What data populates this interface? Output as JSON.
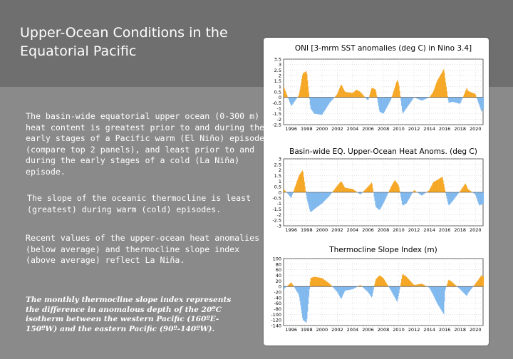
{
  "slide": {
    "title": "Upper-Ocean Conditions in the Equatorial Pacific",
    "para1": "The basin-wide equatorial upper ocean (0-300 m) heat content is greatest prior to and during the early stages of a Pacific warm (El Niño) episode (compare top 2 panels), and least prior to and during the early stages of a cold (La Niña) episode.",
    "para2": "The slope of the oceanic thermocline is least (greatest) during warm (cold) episodes.",
    "para3": "Recent values of the upper-ocean heat anomalies (below average) and thermocline slope index (above average) reflect La Niña.",
    "note": "The monthly thermocline slope index represents the difference in anomalous depth of the 20ºC isotherm between the western Pacific (160ºE-150ºW) and the eastern Pacific (90º-140ºW)."
  },
  "colors": {
    "positive": "#f5a623",
    "negative": "#7fb8ee"
  },
  "chart_data": [
    {
      "type": "area",
      "title": "ONI [3-mrm SST anomalies (deg C) in Nino 3.4]",
      "x": [
        1995,
        1996,
        1997,
        1997.5,
        1998,
        1998.5,
        1999,
        2000,
        2001,
        2002,
        2002.5,
        2003,
        2004,
        2004.5,
        2005,
        2006,
        2006.5,
        2007,
        2007.5,
        2008,
        2009,
        2009.8,
        2010,
        2010.5,
        2011,
        2012,
        2013,
        2014,
        2014.5,
        2015,
        2015.9,
        2016,
        2016.5,
        2017,
        2018,
        2018.9,
        2019,
        2020,
        2020.8,
        2021
      ],
      "y": [
        1.0,
        -0.8,
        0.2,
        2.2,
        2.4,
        -1.0,
        -1.5,
        -1.6,
        -0.5,
        0.3,
        1.2,
        0.5,
        0.4,
        0.7,
        0.5,
        -0.3,
        0.9,
        0.7,
        -1.3,
        -1.5,
        -0.2,
        1.6,
        1.3,
        -1.5,
        -1.0,
        0.0,
        -0.3,
        0.0,
        0.5,
        1.5,
        2.6,
        2.0,
        -0.5,
        -0.4,
        -0.6,
        0.9,
        0.6,
        0.3,
        -1.3,
        -1.1
      ],
      "yticks": [
        3.5,
        3,
        2.5,
        2,
        1.5,
        1,
        0.5,
        0,
        -0.5,
        -1,
        -1.5,
        -2,
        -2.5
      ],
      "ylim": [
        -2.5,
        3.5
      ],
      "xticks": [
        1996,
        1998,
        2000,
        2002,
        2004,
        2006,
        2008,
        2010,
        2012,
        2014,
        2016,
        2018,
        2020
      ]
    },
    {
      "type": "area",
      "title": "Basin-wide EQ. Upper-Ocean Heat Anoms. (deg C)",
      "x": [
        1995,
        1996,
        1997,
        1997.5,
        1998,
        1998.5,
        1999,
        2000,
        2001,
        2002,
        2002.5,
        2003,
        2004,
        2005,
        2006,
        2006.5,
        2007,
        2007.5,
        2008,
        2009,
        2009.5,
        2010,
        2010.5,
        2011,
        2012,
        2013,
        2014,
        2014.5,
        2015,
        2015.7,
        2016,
        2016.5,
        2017,
        2018,
        2018.7,
        2019,
        2020,
        2020.5,
        2021
      ],
      "y": [
        0.3,
        -0.5,
        1.5,
        2.0,
        -0.5,
        -1.8,
        -1.5,
        -1.0,
        -0.3,
        0.6,
        1.0,
        0.4,
        0.3,
        -0.2,
        0.5,
        0.9,
        -1.3,
        -1.6,
        -1.0,
        0.5,
        1.1,
        0.6,
        -1.2,
        -1.0,
        0.2,
        -0.3,
        0.2,
        0.9,
        1.1,
        1.4,
        0.3,
        -1.2,
        -0.8,
        0.1,
        0.8,
        0.3,
        -0.2,
        -1.2,
        -1.0
      ],
      "yticks": [
        3,
        2.5,
        2,
        1.5,
        1,
        0.5,
        0,
        -0.5,
        -1,
        -1.5,
        -2,
        -2.5,
        -3
      ],
      "ylim": [
        -3,
        3
      ],
      "xticks": [
        1996,
        1998,
        2000,
        2002,
        2004,
        2006,
        2008,
        2010,
        2012,
        2014,
        2016,
        2018,
        2020
      ]
    },
    {
      "type": "area",
      "title": "Thermocline Slope Index (m)",
      "x": [
        1995,
        1996,
        1997,
        1997.5,
        1998,
        1998.5,
        1999,
        2000,
        2001,
        2002,
        2002.5,
        2003,
        2004,
        2005,
        2006,
        2006.5,
        2007,
        2007.5,
        2008,
        2009,
        2009.8,
        2010,
        2010.5,
        2011,
        2012,
        2013,
        2014,
        2014.5,
        2015,
        2015.9,
        2016,
        2016.5,
        2017,
        2018,
        2018.9,
        2019,
        2020,
        2020.8,
        2021
      ],
      "y": [
        -10,
        15,
        -30,
        -120,
        -130,
        30,
        35,
        30,
        10,
        -20,
        -45,
        -15,
        -10,
        5,
        -20,
        -40,
        25,
        40,
        30,
        -15,
        -55,
        -30,
        45,
        35,
        5,
        10,
        -5,
        -30,
        -60,
        -100,
        -20,
        25,
        15,
        -10,
        -35,
        -25,
        10,
        40,
        35
      ],
      "yticks": [
        100,
        80,
        60,
        40,
        20,
        0,
        -20,
        -40,
        -60,
        -80,
        -100,
        -120,
        -140
      ],
      "ylim": [
        -140,
        100
      ],
      "xticks": [
        1996,
        1998,
        2000,
        2002,
        2004,
        2006,
        2008,
        2010,
        2012,
        2014,
        2016,
        2018,
        2020
      ]
    }
  ]
}
